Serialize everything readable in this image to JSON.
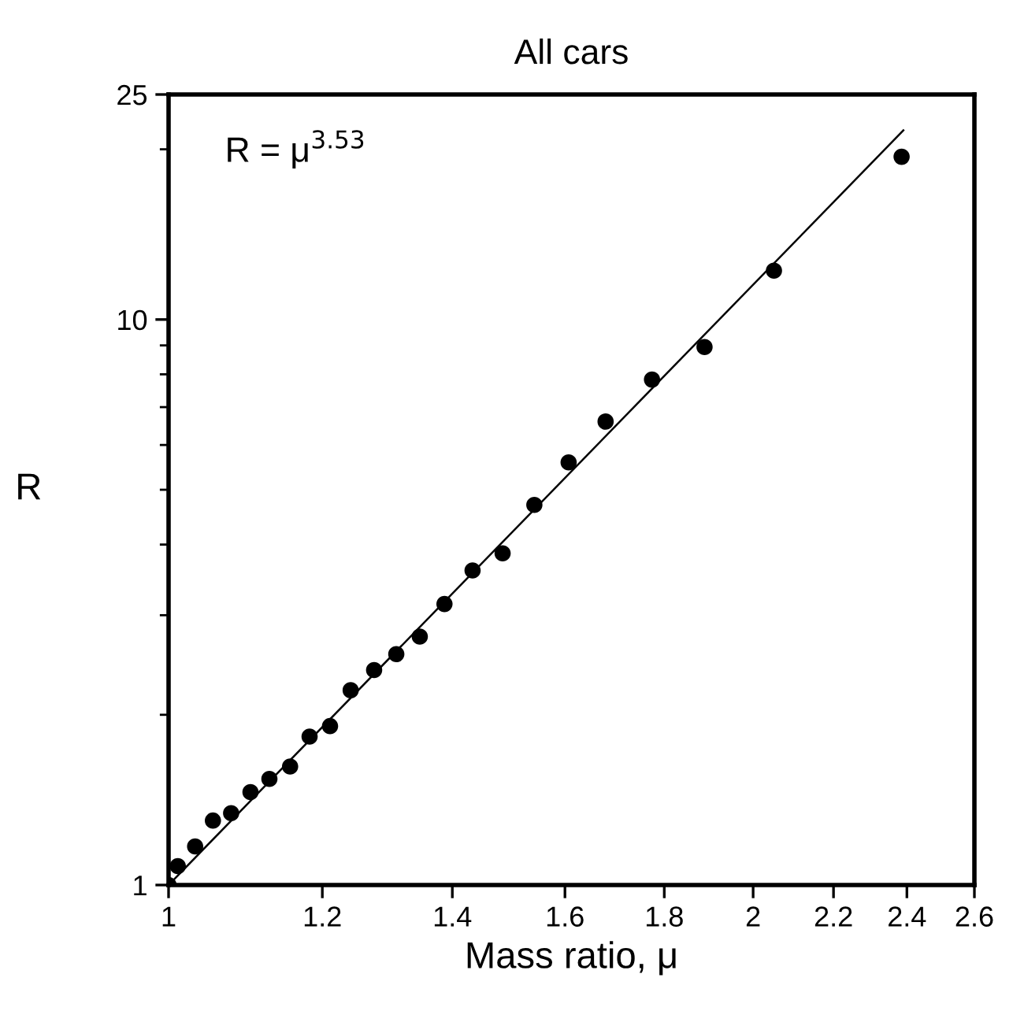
{
  "chart_data": {
    "type": "scatter",
    "title": "All cars",
    "xlabel": "Mass ratio, μ",
    "ylabel": "R",
    "annotations": [
      "R = μ$^{3.53}$"
    ],
    "log": "xy",
    "grid": false,
    "legend": false,
    "marker": "circle",
    "xlim": [
      1,
      2.6
    ],
    "xticks": [
      1,
      1.2,
      1.4,
      1.6,
      1.8,
      2,
      2.2,
      2.4,
      2.6
    ],
    "ylim": [
      1,
      25
    ],
    "yticks": [
      1,
      {
        "value": 2,
        "label": null
      },
      {
        "value": 3,
        "label": null
      },
      {
        "value": 4,
        "label": null
      },
      {
        "value": 5,
        "label": null
      },
      {
        "value": 6,
        "label": null
      },
      {
        "value": 7,
        "label": null
      },
      {
        "value": 8,
        "label": null
      },
      {
        "value": 9,
        "label": null
      },
      10,
      {
        "value": 20,
        "label": null
      },
      25
    ],
    "series": [
      {
        "color": "#000000",
        "x": [
          1.0,
          1.011,
          1.032,
          1.054,
          1.077,
          1.102,
          1.127,
          1.155,
          1.182,
          1.211,
          1.241,
          1.276,
          1.31,
          1.347,
          1.387,
          1.434,
          1.486,
          1.543,
          1.607,
          1.679,
          1.774,
          1.888,
          2.05,
          2.385
        ],
        "values": [
          1.0,
          1.08,
          1.17,
          1.3,
          1.34,
          1.46,
          1.54,
          1.62,
          1.83,
          1.91,
          2.21,
          2.4,
          2.56,
          2.75,
          3.14,
          3.6,
          3.86,
          4.7,
          5.59,
          6.6,
          7.83,
          8.94,
          12.2,
          19.4
        ]
      },
      {
        "type": "line",
        "color": "#000000",
        "marker": "none",
        "line_style": "solid",
        "x": [
          1,
          2.39
        ],
        "values": [
          1,
          21.6
        ]
      }
    ]
  }
}
